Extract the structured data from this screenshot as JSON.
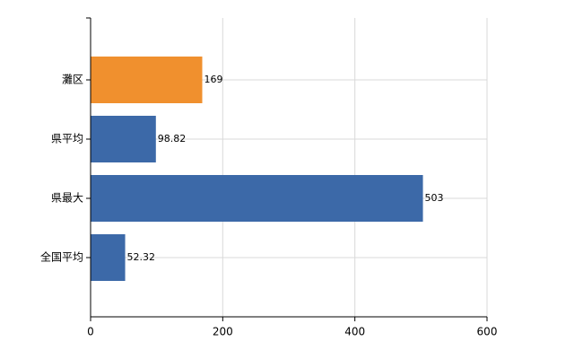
{
  "chart_data": {
    "type": "bar",
    "orientation": "horizontal",
    "categories": [
      "灘区",
      "県平均",
      "県最大",
      "全国平均"
    ],
    "values": [
      169,
      98.82,
      503,
      52.32
    ],
    "colors": [
      "#f0902e",
      "#3c69a8",
      "#3c69a8",
      "#3c69a8"
    ],
    "xlim": [
      0,
      600
    ],
    "xticks": [
      0,
      200,
      400,
      600
    ],
    "grid": true,
    "data_labels": true
  }
}
